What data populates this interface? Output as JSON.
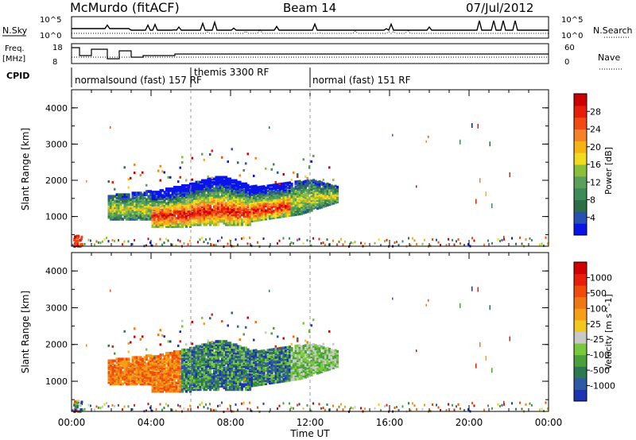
{
  "header": {
    "station": "McMurdo (fitACF)",
    "beam": "Beam 14",
    "date": "07/Jul/2012"
  },
  "top_panels": {
    "nsky_label": "N.Sky",
    "nsky_ticks": [
      "10^5",
      "10^0"
    ],
    "nsearch_label": "N.Search",
    "nsearch_ticks": [
      "10^5",
      "10^0"
    ],
    "freq_label_1": "Freq.",
    "freq_label_2": "[MHz]",
    "freq_ticks": [
      "18",
      "8"
    ],
    "nave_label": "Nave",
    "nave_ticks": [
      "60",
      "0"
    ],
    "cpid_label": "CPID",
    "cpid_segments": [
      {
        "label": "normalsound (fast) 157 RF",
        "start_hour": 0
      },
      {
        "label": "themis 3300 RF",
        "start_hour": 6
      },
      {
        "label": "normal (fast) 151 RF",
        "start_hour": 12
      }
    ]
  },
  "x_axis": {
    "label": "Time UT",
    "ticks": [
      "00:00",
      "04:00",
      "08:00",
      "12:00",
      "16:00",
      "20:00",
      "00:00"
    ]
  },
  "chart_data": [
    {
      "type": "heatmap",
      "title": "Power",
      "xlabel": "Time UT",
      "ylabel": "Slant Range [km]",
      "xlim": [
        0,
        24
      ],
      "ylim": [
        180,
        4500
      ],
      "yticks": [
        "1000",
        "2000",
        "3000",
        "4000"
      ],
      "colorbar": {
        "label": "Power [dB]",
        "ticks": [
          "28",
          "24",
          "20",
          "16",
          "12",
          "8",
          "4"
        ],
        "colors": [
          "#0a14e6",
          "#2850b4",
          "#2d6e46",
          "#3c8c5a",
          "#5aa05a",
          "#8cbe3c",
          "#f0dc1e",
          "#f5b414",
          "#f58228",
          "#f04b14",
          "#e61e0a",
          "#cd0000"
        ]
      },
      "description_regions": [
        {
          "t_start": 1.8,
          "t_end": 13.4,
          "range_min": 700,
          "range_max": 2300,
          "power_db": "4-28"
        }
      ]
    },
    {
      "type": "heatmap",
      "title": "Velocity",
      "xlabel": "Time UT",
      "ylabel": "Slant Range [km]",
      "xlim": [
        0,
        24
      ],
      "ylim": [
        180,
        4500
      ],
      "yticks": [
        "1000",
        "2000",
        "3000",
        "4000"
      ],
      "colorbar": {
        "label": "Velocity [m s^-1]",
        "ticks": [
          "1000",
          "500",
          "100",
          "25",
          "-25",
          "-100",
          "-500",
          "-1000"
        ],
        "colors": [
          "#1e32b4",
          "#2d5aa0",
          "#2d7850",
          "#4ba03c",
          "#78c83c",
          "#c8c8c8",
          "#f0c81e",
          "#f5a014",
          "#f07814",
          "#f04b0a",
          "#e61e0a",
          "#d20000"
        ]
      },
      "description_regions": [
        {
          "t_start": 1.8,
          "t_end": 13.4,
          "range_min": 800,
          "range_max": 2200,
          "velocity": "-500 to 1000"
        }
      ]
    }
  ]
}
